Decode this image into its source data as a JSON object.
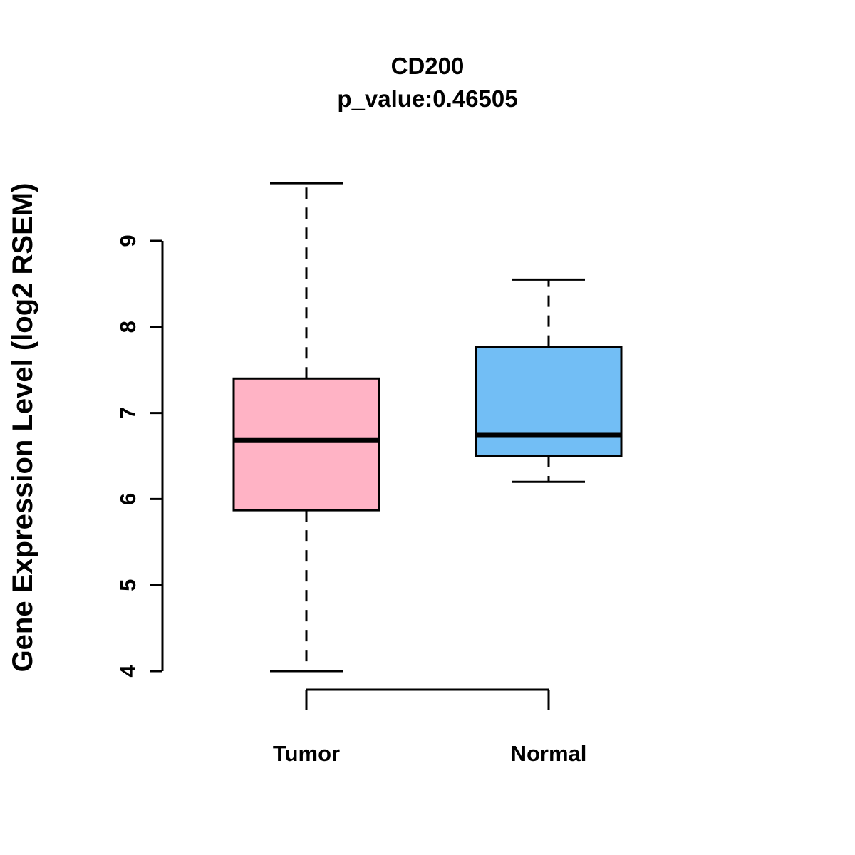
{
  "title": "CD200",
  "subtitle": "p_value:0.46505",
  "ylabel": "Gene Expression Level (log2 RSEM)",
  "chart_data": {
    "type": "boxplot",
    "title": "CD200",
    "subtitle": "p_value:0.46505",
    "ylabel": "Gene Expression Level (log2 RSEM)",
    "categories": [
      "Tumor",
      "Normal"
    ],
    "yticks": [
      4,
      5,
      6,
      7,
      8,
      9
    ],
    "ylim": [
      3.6,
      9.8
    ],
    "grid": false,
    "legend": "none",
    "box_border_color": "#000000",
    "median_color": "#000000",
    "whisker_style": "dashed",
    "series": [
      {
        "name": "Tumor",
        "color": "#FFB3C5",
        "whisker_low": 4.0,
        "q1": 5.87,
        "median": 6.68,
        "q3": 7.4,
        "whisker_high": 9.67
      },
      {
        "name": "Normal",
        "color": "#72BEF5",
        "whisker_low": 6.2,
        "q1": 6.5,
        "median": 6.74,
        "q3": 7.77,
        "whisker_high": 8.55
      }
    ]
  }
}
